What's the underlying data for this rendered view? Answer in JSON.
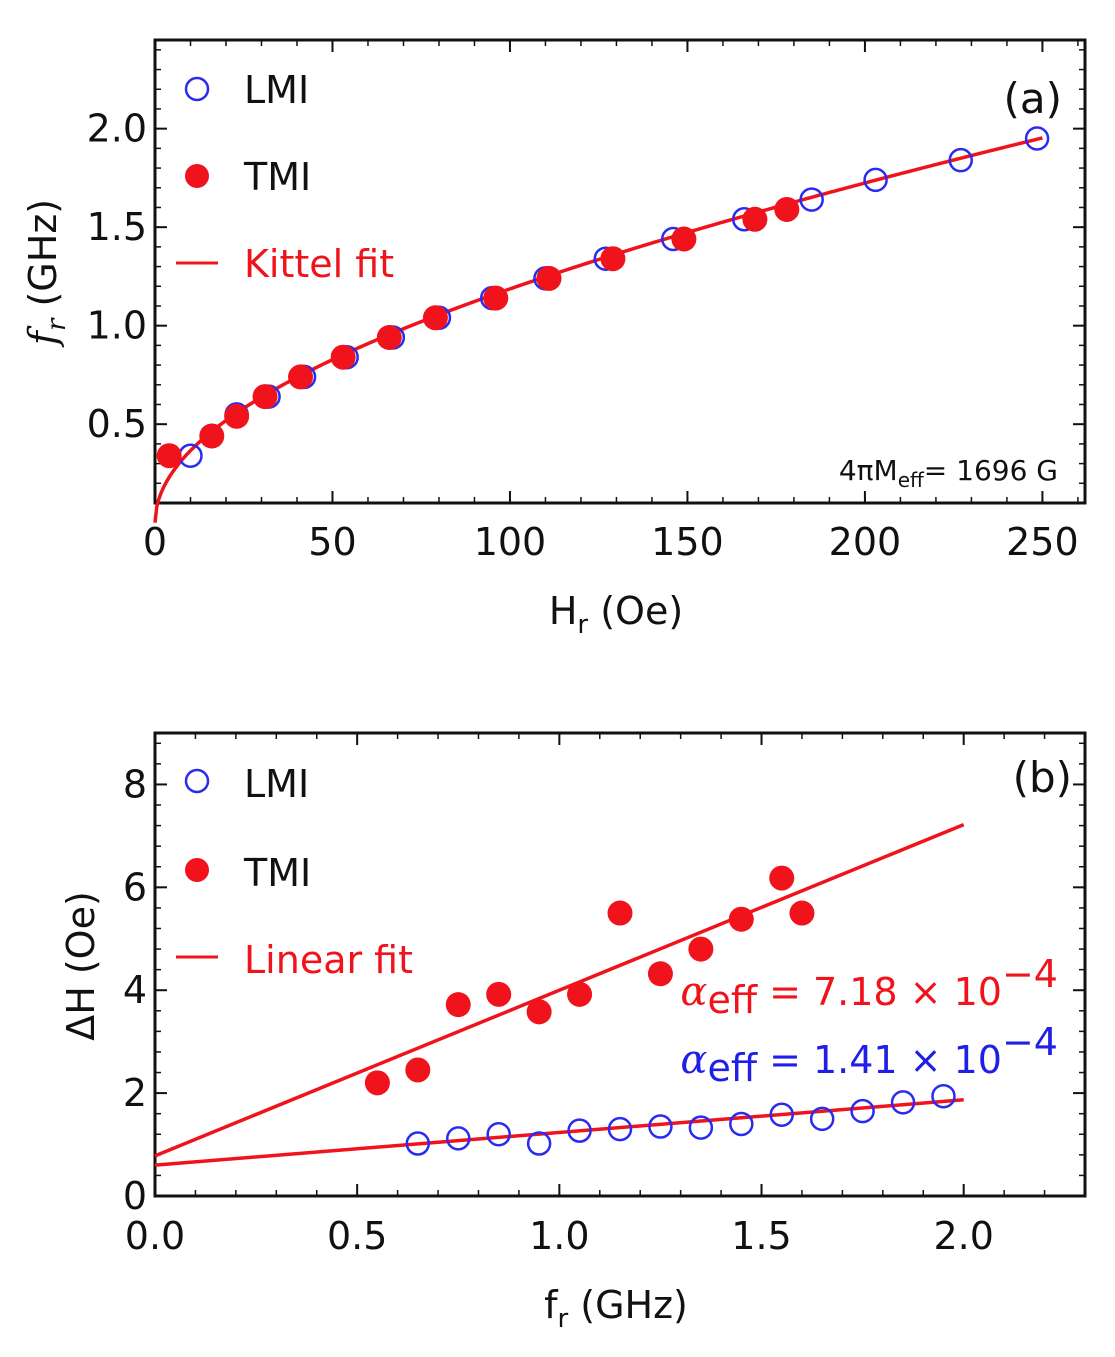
{
  "colors": {
    "lmi": "#2b2bf0",
    "tmi": "#f0131b",
    "fit": "#f0131b",
    "axis": "#111111"
  },
  "chart_data": [
    {
      "type": "scatter",
      "panel_label": "(a)",
      "xlabel_main": "H",
      "xlabel_sub": "r",
      "xlabel_unit": " (Oe)",
      "ylabel_main": "f",
      "ylabel_sub": "r",
      "ylabel_unit": " (GHz)",
      "xlim": [
        0,
        262
      ],
      "ylim": [
        0.1,
        2.45
      ],
      "xticks": [
        0,
        50,
        100,
        150,
        200,
        250
      ],
      "xtick_labels": [
        "0",
        "50",
        "100",
        "150",
        "200",
        "250"
      ],
      "yticks": [
        0.5,
        1.0,
        1.5,
        2.0
      ],
      "ytick_labels": [
        "0.5",
        "1.0",
        "1.5",
        "2.0"
      ],
      "legend_position": "top-left",
      "legend": [
        "LMI",
        "TMI",
        "Kittel fit"
      ],
      "annotation": {
        "prefix": "4πM",
        "sub": "eff",
        "suffix": "= 1696 G"
      },
      "series": [
        {
          "name": "LMI",
          "marker": "open-circle",
          "x": [
            10,
            16,
            23,
            32,
            42,
            54,
            67,
            80,
            95,
            110,
            127,
            146,
            166,
            185,
            203,
            227,
            248.5
          ],
          "y": [
            0.34,
            0.44,
            0.55,
            0.64,
            0.74,
            0.84,
            0.94,
            1.04,
            1.14,
            1.24,
            1.34,
            1.44,
            1.54,
            1.64,
            1.74,
            1.84,
            1.95
          ]
        },
        {
          "name": "TMI",
          "marker": "filled-circle",
          "x": [
            4,
            16,
            23,
            31,
            41,
            53,
            66,
            79,
            96,
            111,
            129,
            149,
            169,
            178
          ],
          "y": [
            0.34,
            0.44,
            0.54,
            0.64,
            0.74,
            0.84,
            0.94,
            1.04,
            1.14,
            1.24,
            1.34,
            1.44,
            1.54,
            1.59
          ]
        },
        {
          "name": "Kittel fit",
          "marker": "line",
          "model": "kittel",
          "fourpiMeff": 1696,
          "gamma_ghz_per_oe": 0.0028,
          "xrange": [
            0,
            250
          ]
        }
      ]
    },
    {
      "type": "scatter",
      "panel_label": "(b)",
      "xlabel_main": "f",
      "xlabel_sub": "r",
      "xlabel_unit": " (GHz)",
      "ylabel": "ΔH (Oe)",
      "xlim": [
        0,
        2.3
      ],
      "ylim": [
        0,
        9
      ],
      "xticks": [
        0.0,
        0.5,
        1.0,
        1.5,
        2.0
      ],
      "xtick_labels": [
        "0.0",
        "0.5",
        "1.0",
        "1.5",
        "2.0"
      ],
      "yticks": [
        0,
        2,
        4,
        6,
        8
      ],
      "ytick_labels": [
        "0",
        "2",
        "4",
        "6",
        "8"
      ],
      "legend_position": "top-left",
      "legend": [
        "LMI",
        "TMI",
        "Linear fit"
      ],
      "alpha_tmi": {
        "sym": "α",
        "sub": "eff",
        "rest": " = 7.18 × 10",
        "exp": "−4"
      },
      "alpha_lmi": {
        "sym": "α",
        "sub": "eff",
        "rest": " = 1.41 × 10",
        "exp": "−4"
      },
      "series": [
        {
          "name": "LMI",
          "marker": "open-circle",
          "x": [
            0.65,
            0.75,
            0.85,
            0.95,
            1.05,
            1.15,
            1.25,
            1.35,
            1.45,
            1.55,
            1.65,
            1.75,
            1.85,
            1.95
          ],
          "y": [
            1.02,
            1.12,
            1.2,
            1.02,
            1.27,
            1.3,
            1.35,
            1.33,
            1.4,
            1.58,
            1.5,
            1.65,
            1.82,
            1.94
          ]
        },
        {
          "name": "TMI",
          "marker": "filled-circle",
          "x": [
            0.55,
            0.65,
            0.75,
            0.85,
            0.95,
            1.05,
            1.15,
            1.25,
            1.35,
            1.45,
            1.55,
            1.6
          ],
          "y": [
            2.2,
            2.45,
            3.72,
            3.92,
            3.58,
            3.92,
            5.5,
            4.32,
            4.8,
            5.38,
            6.18,
            5.5
          ]
        },
        {
          "name": "Linear fit TMI",
          "marker": "line",
          "x": [
            0,
            2.0
          ],
          "y": [
            0.78,
            7.22
          ]
        },
        {
          "name": "Linear fit LMI",
          "marker": "line",
          "x": [
            0,
            2.0
          ],
          "y": [
            0.6,
            1.87
          ]
        }
      ]
    }
  ]
}
